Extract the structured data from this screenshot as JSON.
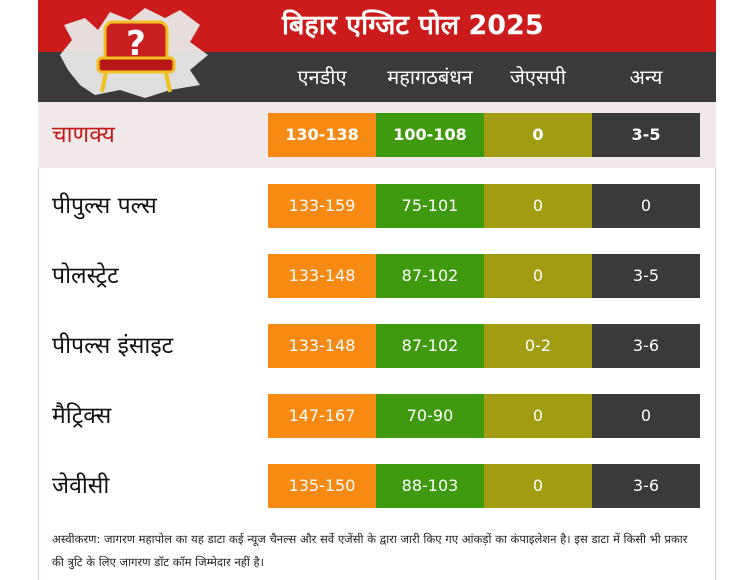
{
  "title": "बिहार एग्जिट पोल 2025",
  "logo": {
    "icon": "chair-question-icon",
    "glyph": "?"
  },
  "columns": [
    "एनडीए",
    "महागठबंधन",
    "जेएसपी",
    "अन्य"
  ],
  "chart_data": {
    "type": "table",
    "title": "बिहार एग्जिट पोल 2025",
    "columns": [
      "एनडीए",
      "महागठबंधन",
      "जेएसपी",
      "अन्य"
    ],
    "rows": [
      {
        "agency": "चाणक्य",
        "values": [
          "130-138",
          "100-108",
          "0",
          "3-5"
        ]
      },
      {
        "agency": "पीपुल्स पल्स",
        "values": [
          "133-159",
          "75-101",
          "0",
          "0"
        ]
      },
      {
        "agency": "पोलस्ट्रेट",
        "values": [
          "133-148",
          "87-102",
          "0",
          "3-5"
        ]
      },
      {
        "agency": "पीपल्स इंसाइट",
        "values": [
          "133-148",
          "87-102",
          "0-2",
          "3-6"
        ]
      },
      {
        "agency": "मैट्रिक्स",
        "values": [
          "147-167",
          "70-90",
          "0",
          "0"
        ]
      },
      {
        "agency": "जेवीसी",
        "values": [
          "135-150",
          "88-103",
          "0",
          "3-6"
        ]
      }
    ]
  },
  "colors": {
    "header_red": "#cc1b1b",
    "header_dark": "#3a3a3a",
    "nda": "#f68a12",
    "mgb": "#3f9a10",
    "jsp": "#a29c12",
    "other": "#3a3a3a",
    "highlight_text": "#c41a1a"
  },
  "footer": "अस्वीकरण: जागरण महापोल का यह डाटा कई न्यूज चैनल्स और सर्वे एजेंसी के द्वारा जारी किए गए आंकड़ों का कंपाइलेशन है। इस डाटा में किसी भी प्रकार की त्रुटि के लिए जागरण डॉट कॉम जिम्मेदार नहीं है।"
}
